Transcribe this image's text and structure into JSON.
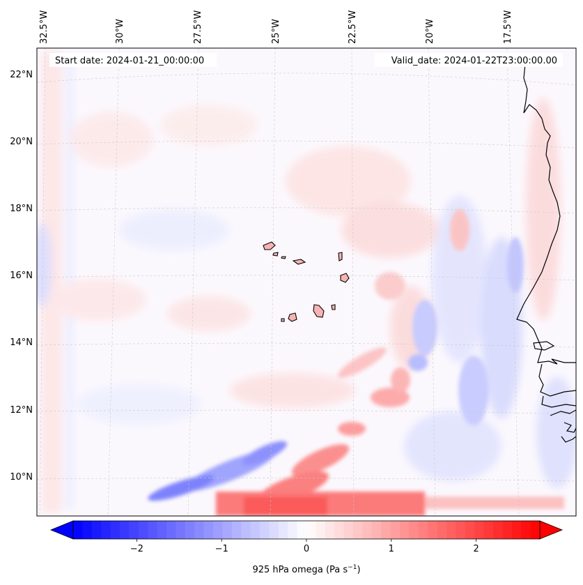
{
  "figure": {
    "start_date_text": "Start date: 2024-01-21_00:00:00",
    "valid_date_text": "Valid_date: 2024-01-22T23:00:00.00"
  },
  "map": {
    "variable": "925 hPa omega",
    "units": "Pa s−1",
    "lon_labels": [
      "32.5°W",
      "30°W",
      "27.5°W",
      "25°W",
      "22.5°W",
      "20°W",
      "17.5°W"
    ],
    "lat_labels": [
      "22°N",
      "20°N",
      "18°N",
      "16°N",
      "14°N",
      "12°N",
      "10°N"
    ],
    "gridlines": "dashed",
    "coastline_color": "#000000",
    "colormap": "bwr",
    "features": [
      {
        "name": "Cape Verde islands",
        "type": "islands"
      },
      {
        "name": "West African coast",
        "type": "coastline"
      }
    ]
  },
  "colorbar": {
    "label_main": "925 hPa omega (Pa s",
    "label_sup": "−1",
    "label_close": ")",
    "ticks": [
      "−2",
      "−1",
      "0",
      "1",
      "2"
    ],
    "tick_values": [
      -2,
      -1,
      0,
      1,
      2
    ],
    "range": [
      -2.75,
      2.75
    ],
    "extend": "both",
    "colors": {
      "min": "#0000ff",
      "mid": "#ffffff",
      "max": "#ff0000"
    }
  }
}
